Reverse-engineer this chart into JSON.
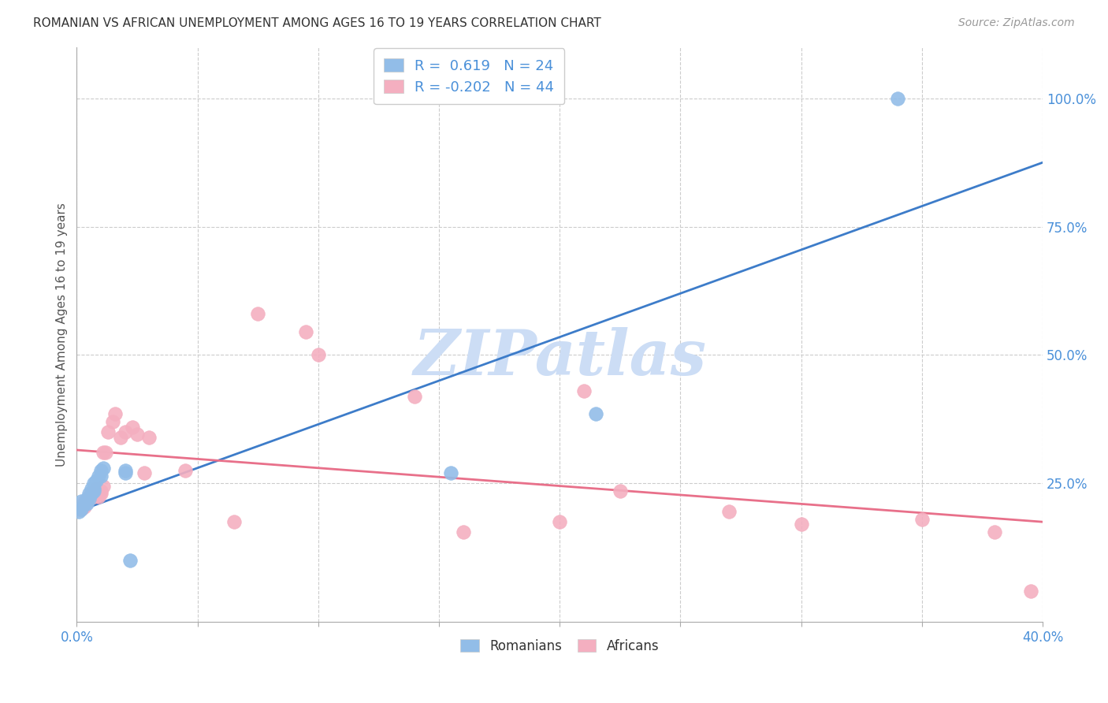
{
  "title": "ROMANIAN VS AFRICAN UNEMPLOYMENT AMONG AGES 16 TO 19 YEARS CORRELATION CHART",
  "source": "Source: ZipAtlas.com",
  "ylabel": "Unemployment Among Ages 16 to 19 years",
  "xlim": [
    0.0,
    0.4
  ],
  "ylim": [
    -0.02,
    1.1
  ],
  "xticks": [
    0.0,
    0.05,
    0.1,
    0.15,
    0.2,
    0.25,
    0.3,
    0.35,
    0.4
  ],
  "xticklabels": [
    "0.0%",
    "",
    "",
    "",
    "",
    "",
    "",
    "",
    "40.0%"
  ],
  "yticks_right": [
    0.25,
    0.5,
    0.75,
    1.0
  ],
  "yticklabels_right": [
    "25.0%",
    "50.0%",
    "75.0%",
    "100.0%"
  ],
  "romanian_color": "#92bde8",
  "african_color": "#f4afc0",
  "romanian_line_color": "#3d7cc9",
  "african_line_color": "#e8708a",
  "romanian_R": 0.619,
  "romanian_N": 24,
  "african_R": -0.202,
  "african_N": 44,
  "watermark": "ZIPatlas",
  "watermark_color": "#ccddf5",
  "blue_line_x0": 0.0,
  "blue_line_y0": 0.195,
  "blue_line_x1": 0.4,
  "blue_line_y1": 0.875,
  "pink_line_x0": 0.0,
  "pink_line_y0": 0.315,
  "pink_line_x1": 0.4,
  "pink_line_y1": 0.175,
  "romanians_x": [
    0.001,
    0.002,
    0.002,
    0.003,
    0.004,
    0.004,
    0.005,
    0.005,
    0.006,
    0.006,
    0.007,
    0.007,
    0.007,
    0.008,
    0.009,
    0.01,
    0.01,
    0.011,
    0.02,
    0.02,
    0.022,
    0.155,
    0.215,
    0.34
  ],
  "romanians_y": [
    0.195,
    0.2,
    0.215,
    0.21,
    0.21,
    0.22,
    0.22,
    0.23,
    0.23,
    0.24,
    0.235,
    0.24,
    0.25,
    0.255,
    0.265,
    0.265,
    0.275,
    0.28,
    0.27,
    0.275,
    0.1,
    0.27,
    0.385,
    1.0
  ],
  "africans_x": [
    0.001,
    0.002,
    0.003,
    0.003,
    0.004,
    0.005,
    0.005,
    0.006,
    0.006,
    0.007,
    0.007,
    0.008,
    0.008,
    0.009,
    0.009,
    0.01,
    0.01,
    0.011,
    0.011,
    0.012,
    0.013,
    0.015,
    0.016,
    0.018,
    0.02,
    0.023,
    0.025,
    0.028,
    0.03,
    0.045,
    0.065,
    0.075,
    0.095,
    0.1,
    0.14,
    0.16,
    0.2,
    0.21,
    0.225,
    0.27,
    0.3,
    0.35,
    0.38,
    0.395
  ],
  "africans_y": [
    0.2,
    0.2,
    0.205,
    0.215,
    0.215,
    0.22,
    0.225,
    0.225,
    0.23,
    0.225,
    0.23,
    0.23,
    0.24,
    0.225,
    0.235,
    0.23,
    0.235,
    0.245,
    0.31,
    0.31,
    0.35,
    0.37,
    0.385,
    0.34,
    0.35,
    0.36,
    0.345,
    0.27,
    0.34,
    0.275,
    0.175,
    0.58,
    0.545,
    0.5,
    0.42,
    0.155,
    0.175,
    0.43,
    0.235,
    0.195,
    0.17,
    0.18,
    0.155,
    0.04
  ]
}
